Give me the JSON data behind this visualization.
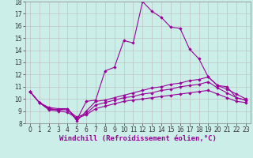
{
  "xlabel": "Windchill (Refroidissement éolien,°C)",
  "xlim": [
    -0.5,
    23.5
  ],
  "ylim": [
    8,
    18
  ],
  "xticks": [
    0,
    1,
    2,
    3,
    4,
    5,
    6,
    7,
    8,
    9,
    10,
    11,
    12,
    13,
    14,
    15,
    16,
    17,
    18,
    19,
    20,
    21,
    22,
    23
  ],
  "yticks": [
    8,
    9,
    10,
    11,
    12,
    13,
    14,
    15,
    16,
    17,
    18
  ],
  "background_color": "#cceee8",
  "line_color": "#990099",
  "grid_color": "#bbbbbb",
  "series": [
    {
      "x": [
        0,
        1,
        2,
        3,
        4,
        5,
        6,
        7,
        8,
        9,
        10,
        11,
        12,
        13,
        14,
        15,
        16,
        17,
        18,
        19,
        20,
        21,
        22,
        23
      ],
      "y": [
        10.6,
        9.7,
        9.2,
        9.1,
        9.2,
        8.3,
        9.8,
        9.9,
        12.3,
        12.6,
        14.8,
        14.6,
        18.0,
        17.2,
        16.7,
        15.9,
        15.8,
        14.1,
        13.3,
        11.8,
        11.1,
        11.0,
        10.1,
        9.9
      ]
    },
    {
      "x": [
        0,
        1,
        2,
        3,
        4,
        5,
        6,
        7,
        8,
        9,
        10,
        11,
        12,
        13,
        14,
        15,
        16,
        17,
        18,
        19,
        20,
        21,
        22,
        23
      ],
      "y": [
        10.6,
        9.7,
        9.3,
        9.2,
        9.2,
        8.2,
        9.0,
        9.8,
        9.9,
        10.1,
        10.3,
        10.5,
        10.7,
        10.9,
        11.0,
        11.2,
        11.3,
        11.5,
        11.6,
        11.8,
        11.1,
        10.8,
        10.4,
        10.0
      ]
    },
    {
      "x": [
        0,
        1,
        2,
        3,
        4,
        5,
        6,
        7,
        8,
        9,
        10,
        11,
        12,
        13,
        14,
        15,
        16,
        17,
        18,
        19,
        20,
        21,
        22,
        23
      ],
      "y": [
        10.6,
        9.7,
        9.2,
        9.1,
        9.1,
        8.5,
        8.8,
        9.5,
        9.7,
        9.9,
        10.1,
        10.2,
        10.4,
        10.5,
        10.7,
        10.8,
        11.0,
        11.1,
        11.2,
        11.4,
        10.9,
        10.5,
        10.1,
        9.9
      ]
    },
    {
      "x": [
        0,
        1,
        2,
        3,
        4,
        5,
        6,
        7,
        8,
        9,
        10,
        11,
        12,
        13,
        14,
        15,
        16,
        17,
        18,
        19,
        20,
        21,
        22,
        23
      ],
      "y": [
        10.6,
        9.7,
        9.1,
        9.0,
        8.9,
        8.4,
        8.7,
        9.2,
        9.4,
        9.6,
        9.8,
        9.9,
        10.0,
        10.1,
        10.2,
        10.3,
        10.4,
        10.5,
        10.6,
        10.7,
        10.4,
        10.1,
        9.8,
        9.7
      ]
    }
  ],
  "marker": "D",
  "markersize": 1.8,
  "linewidth": 0.8,
  "tick_fontsize": 5.5,
  "label_fontsize": 6.5
}
